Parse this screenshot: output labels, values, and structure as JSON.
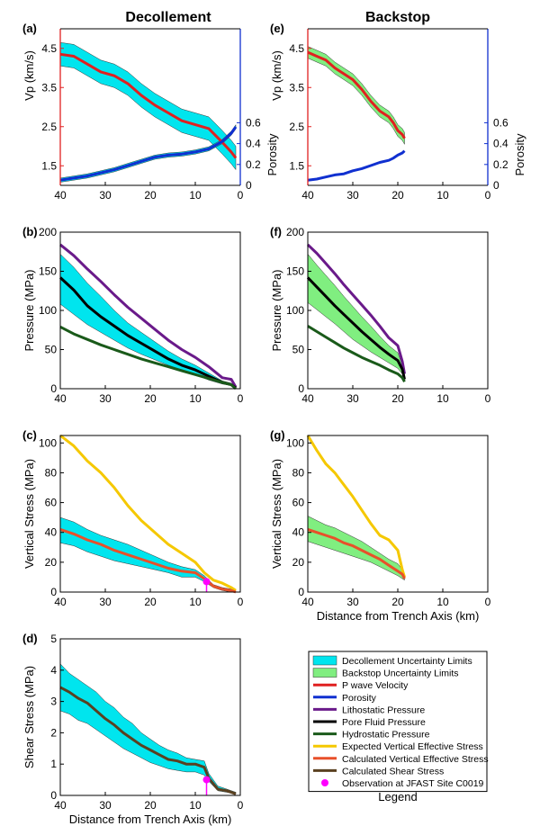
{
  "titles": {
    "left": "Decollement",
    "right": "Backstop"
  },
  "panel_labels": {
    "a": "(a)",
    "b": "(b)",
    "c": "(c)",
    "d": "(d)",
    "e": "(e)",
    "f": "(f)",
    "g": "(g)"
  },
  "axis_labels": {
    "vp": "Vp (km/s)",
    "porosity": "Porosity",
    "pressure": "Pressure (MPa)",
    "vstress": "Vertical Stress (MPa)",
    "shear": "Shear Stress (MPa)",
    "distance": "Distance from Trench Axis (km)"
  },
  "ticks": {
    "distance": [
      "40",
      "30",
      "20",
      "10",
      "0"
    ],
    "vp": [
      "4.5",
      "3.5",
      "2.5",
      "1.5"
    ],
    "porosity": [
      "0.6",
      "0.4",
      "0.2",
      "0"
    ],
    "pressure": [
      "200",
      "150",
      "100",
      "50",
      "0"
    ],
    "vstress": [
      "100",
      "80",
      "60",
      "40",
      "20",
      "0"
    ],
    "shear": [
      "5",
      "4",
      "3",
      "2",
      "1",
      "0"
    ]
  },
  "legend": {
    "title": "Legend",
    "items": [
      {
        "label": "Decollement Uncertainty Limits",
        "color": "#00e5ee",
        "kind": "band"
      },
      {
        "label": "Backstop Uncertainty Limits",
        "color": "#80ee80",
        "kind": "band"
      },
      {
        "label": "P wave Velocity",
        "color": "#e02020",
        "kind": "line"
      },
      {
        "label": "Porosity",
        "color": "#1030d0",
        "kind": "line"
      },
      {
        "label": "Lithostatic Pressure",
        "color": "#6a1a8a",
        "kind": "line"
      },
      {
        "label": "Pore Fluid Pressure",
        "color": "#000000",
        "kind": "line"
      },
      {
        "label": "Hydrostatic Pressure",
        "color": "#1a5a1a",
        "kind": "line"
      },
      {
        "label": "Expected Vertical Effective Stress",
        "color": "#f5c800",
        "kind": "line"
      },
      {
        "label": "Calculated Vertical Effective Stress",
        "color": "#e8502a",
        "kind": "line"
      },
      {
        "label": "Calculated Shear Stress",
        "color": "#5a4020",
        "kind": "line"
      },
      {
        "label": "Observation at JFAST Site C0019",
        "color": "#ff00ff",
        "kind": "marker"
      }
    ]
  },
  "chart_data": [
    {
      "panel": "a",
      "type": "line",
      "title": "Decollement",
      "xlabel": "",
      "ylabel": "Vp (km/s)",
      "y2label": "Porosity",
      "xlim": [
        40,
        0
      ],
      "ylim": [
        1.0,
        5.0
      ],
      "y2lim": [
        0,
        1.5
      ],
      "x": [
        40,
        37,
        34,
        31,
        28,
        25,
        22,
        19,
        16,
        13,
        10,
        7,
        4,
        2,
        1
      ],
      "series": [
        {
          "name": "P wave Velocity",
          "color": "#e02020",
          "band_color": "#00e5ee",
          "band_halfwidth": 0.3,
          "values": [
            4.35,
            4.3,
            4.1,
            3.9,
            3.8,
            3.6,
            3.3,
            3.05,
            2.85,
            2.65,
            2.55,
            2.45,
            2.1,
            1.85,
            1.7
          ]
        },
        {
          "name": "Porosity",
          "axis": "y2",
          "color": "#1030d0",
          "band_color": "#00e5ee",
          "band_halfwidth": 0.02,
          "values": [
            0.05,
            0.07,
            0.09,
            0.12,
            0.15,
            0.19,
            0.23,
            0.27,
            0.29,
            0.3,
            0.32,
            0.35,
            0.42,
            0.5,
            0.56
          ]
        }
      ]
    },
    {
      "panel": "e",
      "type": "line",
      "title": "Backstop",
      "xlabel": "",
      "ylabel": "Vp (km/s)",
      "y2label": "Porosity",
      "xlim": [
        40,
        0
      ],
      "ylim": [
        1.0,
        5.0
      ],
      "y2lim": [
        0,
        1.5
      ],
      "x": [
        40,
        38,
        36,
        34,
        32,
        30,
        28,
        26,
        24,
        22,
        21,
        20,
        19,
        18.5
      ],
      "series": [
        {
          "name": "P wave Velocity",
          "color": "#e02020",
          "band_color": "#80ee80",
          "band_halfwidth": 0.15,
          "values": [
            4.4,
            4.3,
            4.2,
            4.0,
            3.85,
            3.7,
            3.45,
            3.15,
            2.9,
            2.75,
            2.6,
            2.4,
            2.3,
            2.2
          ]
        },
        {
          "name": "Porosity",
          "axis": "y2",
          "color": "#1030d0",
          "values": [
            0.05,
            0.06,
            0.08,
            0.1,
            0.11,
            0.14,
            0.16,
            0.19,
            0.22,
            0.24,
            0.26,
            0.29,
            0.31,
            0.33
          ]
        }
      ]
    },
    {
      "panel": "b",
      "type": "line",
      "xlabel": "",
      "ylabel": "Pressure (MPa)",
      "xlim": [
        40,
        0
      ],
      "ylim": [
        0,
        200
      ],
      "x": [
        40,
        37,
        34,
        31,
        28,
        25,
        22,
        19,
        16,
        13,
        10,
        7,
        4,
        2,
        1
      ],
      "series": [
        {
          "name": "Lithostatic Pressure",
          "color": "#6a1a8a",
          "values": [
            184,
            170,
            153,
            137,
            120,
            104,
            90,
            76,
            62,
            50,
            40,
            28,
            14,
            12,
            2
          ]
        },
        {
          "name": "Pore Fluid Pressure",
          "color": "#000000",
          "band_color": "#00e5ee",
          "band_upper": [
            172,
            155,
            135,
            118,
            100,
            84,
            72,
            60,
            48,
            38,
            30,
            20,
            10,
            7,
            1
          ],
          "band_lower": [
            108,
            95,
            82,
            72,
            62,
            52,
            44,
            37,
            30,
            24,
            18,
            11,
            6,
            4,
            0
          ],
          "values": [
            142,
            126,
            106,
            92,
            80,
            68,
            58,
            48,
            38,
            30,
            24,
            16,
            8,
            5,
            1
          ]
        },
        {
          "name": "Hydrostatic Pressure",
          "color": "#1a5a1a",
          "values": [
            79,
            70,
            63,
            56,
            50,
            44,
            38,
            33,
            28,
            23,
            18,
            13,
            8,
            5,
            0
          ]
        }
      ]
    },
    {
      "panel": "f",
      "type": "line",
      "xlabel": "",
      "ylabel": "Pressure (MPa)",
      "xlim": [
        40,
        0
      ],
      "ylim": [
        0,
        200
      ],
      "x": [
        40,
        38,
        36,
        34,
        32,
        30,
        28,
        26,
        24,
        22,
        20,
        19,
        18.5
      ],
      "series": [
        {
          "name": "Lithostatic Pressure",
          "color": "#6a1a8a",
          "values": [
            184,
            173,
            160,
            147,
            133,
            120,
            107,
            94,
            80,
            65,
            55,
            35,
            19
          ]
        },
        {
          "name": "Pore Fluid Pressure",
          "color": "#000000",
          "band_color": "#80ee80",
          "band_upper": [
            172,
            158,
            145,
            132,
            118,
            105,
            92,
            80,
            67,
            55,
            46,
            30,
            16
          ],
          "band_lower": [
            110,
            101,
            92,
            83,
            73,
            63,
            55,
            47,
            40,
            33,
            26,
            19,
            11
          ],
          "values": [
            142,
            130,
            118,
            106,
            95,
            84,
            73,
            63,
            53,
            44,
            36,
            25,
            12
          ]
        },
        {
          "name": "Hydrostatic Pressure",
          "color": "#1a5a1a",
          "values": [
            80,
            73,
            66,
            59,
            52,
            46,
            40,
            35,
            30,
            24,
            19,
            14,
            9
          ]
        }
      ]
    },
    {
      "panel": "c",
      "type": "line",
      "xlabel": "",
      "ylabel": "Vertical Stress (MPa)",
      "xlim": [
        40,
        0
      ],
      "ylim": [
        0,
        105
      ],
      "x": [
        40,
        37,
        34,
        31,
        28,
        25,
        22,
        19,
        16,
        13,
        10,
        8,
        6,
        4,
        2,
        1
      ],
      "series": [
        {
          "name": "Expected Vertical Effective Stress",
          "color": "#f5c800",
          "values": [
            105,
            98,
            88,
            80,
            70,
            58,
            48,
            40,
            32,
            26,
            20,
            13,
            8,
            6,
            3,
            1
          ]
        },
        {
          "name": "Calculated Vertical Effective Stress",
          "color": "#e8502a",
          "band_color": "#00e5ee",
          "band_upper": [
            50,
            47,
            42,
            38,
            35,
            32,
            28,
            24,
            20,
            17,
            15,
            11,
            5,
            3,
            2,
            0
          ],
          "band_lower": [
            33,
            31,
            27,
            24,
            21,
            19,
            17,
            15,
            13,
            10,
            10,
            7,
            3,
            1,
            0,
            0
          ],
          "values": [
            42,
            39,
            35,
            32,
            28,
            25,
            22,
            19,
            16,
            14,
            13,
            9,
            4,
            2,
            1,
            0
          ]
        }
      ],
      "observation": {
        "name": "Observation at JFAST Site C0019",
        "x": 7.5,
        "y": 7
      }
    },
    {
      "panel": "g",
      "type": "line",
      "xlabel": "Distance from Trench Axis (km)",
      "ylabel": "Vertical Stress (MPa)",
      "xlim": [
        40,
        0
      ],
      "ylim": [
        0,
        105
      ],
      "x": [
        40,
        38,
        36,
        34,
        32,
        30,
        28,
        26,
        24,
        22,
        20,
        19,
        18.5
      ],
      "series": [
        {
          "name": "Expected Vertical Effective Stress",
          "color": "#f5c800",
          "values": [
            105,
            95,
            86,
            80,
            72,
            64,
            55,
            46,
            38,
            35,
            28,
            15,
            10
          ]
        },
        {
          "name": "Calculated Vertical Effective Stress",
          "color": "#e8502a",
          "band_color": "#80ee80",
          "band_upper": [
            51,
            48,
            45,
            43,
            40,
            37,
            34,
            30,
            26,
            22,
            19,
            15,
            11
          ],
          "band_lower": [
            34,
            32,
            30,
            28,
            26,
            24,
            22,
            20,
            17,
            14,
            11,
            9,
            8
          ],
          "values": [
            42,
            40,
            38,
            36,
            33,
            31,
            28,
            25,
            22,
            18,
            14,
            12,
            9
          ]
        }
      ]
    },
    {
      "panel": "d",
      "type": "line",
      "xlabel": "Distance from Trench Axis (km)",
      "ylabel": "Shear Stress (MPa)",
      "xlim": [
        40,
        0
      ],
      "ylim": [
        0,
        5
      ],
      "x": [
        40,
        38,
        36,
        34,
        32,
        30,
        28,
        26,
        24,
        22,
        20,
        18,
        16,
        14,
        12,
        10,
        8,
        7,
        5,
        3,
        1
      ],
      "series": [
        {
          "name": "Calculated Shear Stress",
          "color": "#5a4020",
          "band_color": "#00e5ee",
          "band_upper": [
            4.2,
            3.9,
            3.7,
            3.5,
            3.3,
            3.0,
            2.8,
            2.5,
            2.3,
            2.0,
            1.8,
            1.6,
            1.45,
            1.35,
            1.2,
            1.15,
            1.1,
            0.7,
            0.3,
            0.2,
            0.1
          ],
          "band_lower": [
            2.7,
            2.6,
            2.4,
            2.3,
            2.1,
            1.9,
            1.7,
            1.5,
            1.35,
            1.2,
            1.05,
            0.95,
            0.85,
            0.8,
            0.75,
            0.75,
            0.65,
            0.45,
            0.15,
            0.1,
            0.05
          ],
          "values": [
            3.45,
            3.3,
            3.1,
            2.95,
            2.7,
            2.45,
            2.25,
            2.0,
            1.8,
            1.6,
            1.45,
            1.3,
            1.15,
            1.1,
            1.0,
            1.0,
            0.9,
            0.55,
            0.2,
            0.15,
            0.05
          ]
        }
      ],
      "observation": {
        "name": "Observation at JFAST Site C0019",
        "x": 7.5,
        "y": 0.5
      }
    }
  ]
}
